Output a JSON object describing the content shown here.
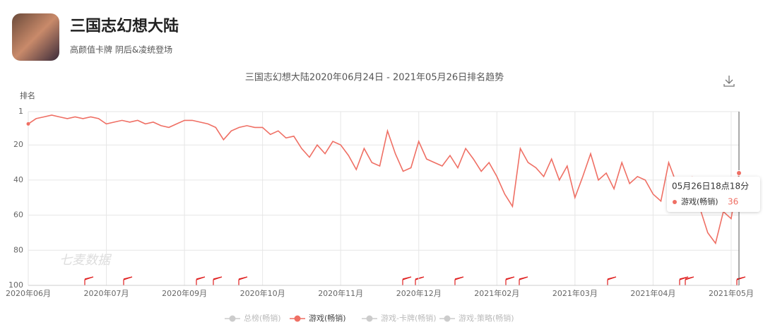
{
  "app": {
    "name": "三国志幻想大陆",
    "tagline": "高颜值卡牌 阴后&凌统登场"
  },
  "chart_data": {
    "type": "line",
    "title": "三国志幻想大陆2020年06月24日 - 2021年05月26日排名趋势",
    "y_label": "排名",
    "watermark": "七麦数据",
    "y_inverted": true,
    "grid": true,
    "ylim": [
      1,
      100
    ],
    "yticks": [
      1,
      20,
      40,
      60,
      80,
      100
    ],
    "categories": [
      "2020年06月",
      null,
      null,
      null,
      null,
      null,
      null,
      null,
      null,
      null,
      "2020年07月",
      null,
      null,
      null,
      null,
      null,
      null,
      null,
      null,
      null,
      "2020年09月",
      null,
      null,
      null,
      null,
      null,
      null,
      null,
      null,
      null,
      "2020年10月",
      null,
      null,
      null,
      null,
      null,
      null,
      null,
      null,
      null,
      "2020年11月",
      null,
      null,
      null,
      null,
      null,
      null,
      null,
      null,
      null,
      "2020年12月",
      null,
      null,
      null,
      null,
      null,
      null,
      null,
      null,
      null,
      "2021年02月",
      null,
      null,
      null,
      null,
      null,
      null,
      null,
      null,
      null,
      "2021年03月",
      null,
      null,
      null,
      null,
      null,
      null,
      null,
      null,
      null,
      "2021年04月",
      null,
      null,
      null,
      null,
      null,
      null,
      null,
      null,
      null,
      "2021年05月",
      null
    ],
    "series": [
      {
        "name": "游戏(畅销)",
        "color": "#ef6f64",
        "values": [
          8,
          5,
          4,
          3,
          4,
          5,
          4,
          5,
          4,
          5,
          8,
          7,
          6,
          7,
          6,
          8,
          7,
          9,
          10,
          8,
          6,
          6,
          7,
          8,
          10,
          17,
          12,
          10,
          9,
          10,
          10,
          14,
          12,
          16,
          15,
          22,
          27,
          20,
          25,
          18,
          20,
          26,
          34,
          22,
          30,
          32,
          12,
          25,
          35,
          33,
          18,
          28,
          30,
          32,
          26,
          33,
          22,
          28,
          35,
          30,
          38,
          48,
          55,
          22,
          30,
          33,
          38,
          28,
          40,
          32,
          50,
          38,
          25,
          40,
          36,
          45,
          30,
          42,
          38,
          40,
          48,
          52,
          30,
          42,
          58,
          38,
          56,
          70,
          76,
          58,
          62,
          36
        ]
      }
    ],
    "hidden_legend": [
      "总榜(畅销)",
      "游戏-卡牌(畅销)",
      "游戏-策略(畅销)"
    ],
    "tooltip": {
      "time": "05月26日18点18分",
      "series": "游戏(畅销)"
    }
  }
}
